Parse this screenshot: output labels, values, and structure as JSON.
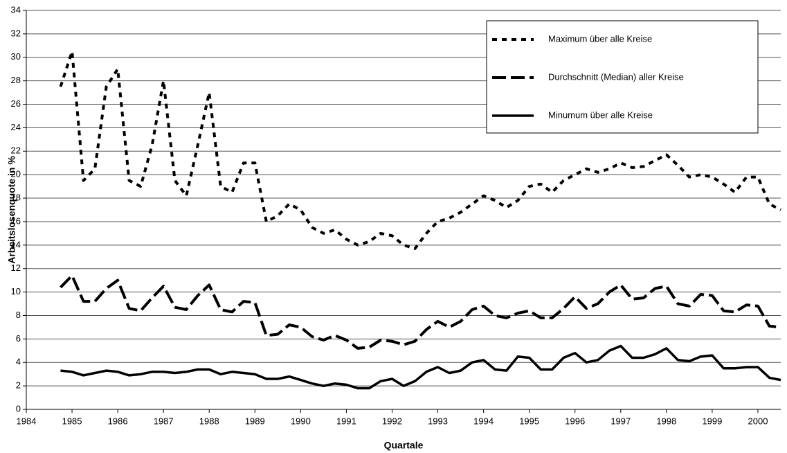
{
  "chart_data": {
    "type": "line",
    "x_label": "Quartale",
    "y_label": "Arbeitslosenquote in %",
    "x": [
      1984.75,
      1985,
      1985.25,
      1985.5,
      1985.75,
      1986,
      1986.25,
      1986.5,
      1986.75,
      1987,
      1987.25,
      1987.5,
      1987.75,
      1988,
      1988.25,
      1988.5,
      1988.75,
      1989,
      1989.25,
      1989.5,
      1989.75,
      1990,
      1990.25,
      1990.5,
      1990.75,
      1991,
      1991.25,
      1991.5,
      1991.75,
      1992,
      1992.25,
      1992.5,
      1992.75,
      1993,
      1993.25,
      1993.5,
      1993.75,
      1994,
      1994.25,
      1994.5,
      1994.75,
      1995,
      1995.25,
      1995.5,
      1995.75,
      1996,
      1996.25,
      1996.5,
      1996.75,
      1997,
      1997.25,
      1997.5,
      1997.75,
      1998,
      1998.25,
      1998.5,
      1998.75,
      1999,
      1999.25,
      1999.5,
      1999.75,
      2000,
      2000.25,
      2000.5
    ],
    "series": [
      {
        "name": "Maximum über alle Kreise",
        "color": "#000000",
        "line_style": "dotted",
        "values": [
          27.5,
          30.5,
          19.5,
          20.5,
          27.5,
          29,
          19.5,
          19,
          22.5,
          28,
          19.5,
          18.2,
          22.5,
          27,
          19,
          18.5,
          21,
          21,
          16,
          16.5,
          17.5,
          17,
          15.5,
          15,
          15.3,
          14.5,
          14,
          14.3,
          15,
          14.8,
          14,
          13.7,
          15,
          16,
          16.3,
          16.8,
          17.5,
          18.2,
          17.8,
          17.2,
          17.8,
          19,
          19.2,
          18.5,
          19.5,
          20,
          20.5,
          20.2,
          20.5,
          21,
          20.6,
          20.7,
          21.2,
          21.7,
          20.8,
          19.8,
          20,
          19.8,
          19.2,
          18.5,
          19.8,
          19.8,
          17.5,
          17
        ]
      },
      {
        "name": "Durchschnitt (Median) aller Kreise",
        "color": "#000000",
        "line_style": "dashed",
        "values": [
          10.4,
          11.4,
          9.2,
          9.2,
          10.3,
          11,
          8.6,
          8.4,
          9.5,
          10.5,
          8.7,
          8.5,
          9.7,
          10.6,
          8.5,
          8.3,
          9.2,
          9.1,
          6.3,
          6.4,
          7.2,
          7,
          6.2,
          5.9,
          6.3,
          5.9,
          5.2,
          5.3,
          5.9,
          5.8,
          5.5,
          5.8,
          6.8,
          7.5,
          7,
          7.5,
          8.5,
          8.8,
          8,
          7.8,
          8.2,
          8.4,
          7.8,
          7.8,
          8.6,
          9.6,
          8.6,
          9,
          10,
          10.6,
          9.4,
          9.5,
          10.3,
          10.5,
          9,
          8.8,
          9.8,
          9.7,
          8.4,
          8.3,
          8.9,
          8.8,
          7.1,
          7
        ]
      },
      {
        "name": "Minumum über alle Kreise",
        "color": "#000000",
        "line_style": "solid",
        "values": [
          3.3,
          3.2,
          2.9,
          3.1,
          3.3,
          3.2,
          2.9,
          3.0,
          3.2,
          3.2,
          3.1,
          3.2,
          3.4,
          3.4,
          3.0,
          3.2,
          3.1,
          3.0,
          2.6,
          2.6,
          2.8,
          2.5,
          2.2,
          2.0,
          2.2,
          2.1,
          1.8,
          1.8,
          2.4,
          2.6,
          2.0,
          2.4,
          3.2,
          3.6,
          3.1,
          3.3,
          4.0,
          4.2,
          3.4,
          3.3,
          4.5,
          4.4,
          3.4,
          3.4,
          4.4,
          4.8,
          4.0,
          4.2,
          5.0,
          5.4,
          4.4,
          4.4,
          4.7,
          5.2,
          4.2,
          4.1,
          4.5,
          4.6,
          3.5,
          3.5,
          3.6,
          3.6,
          2.7,
          2.5
        ]
      }
    ],
    "xlim": [
      1984,
      2000.5
    ],
    "xticks": [
      1984,
      1985,
      1986,
      1987,
      1988,
      1989,
      1990,
      1991,
      1992,
      1993,
      1994,
      1995,
      1996,
      1997,
      1998,
      1999,
      2000
    ],
    "ylim": [
      0,
      34
    ],
    "yticks": [
      0,
      2,
      4,
      6,
      8,
      10,
      12,
      14,
      16,
      18,
      20,
      22,
      24,
      26,
      28,
      30,
      32,
      34
    ],
    "grid": true,
    "legend": "upper right"
  }
}
